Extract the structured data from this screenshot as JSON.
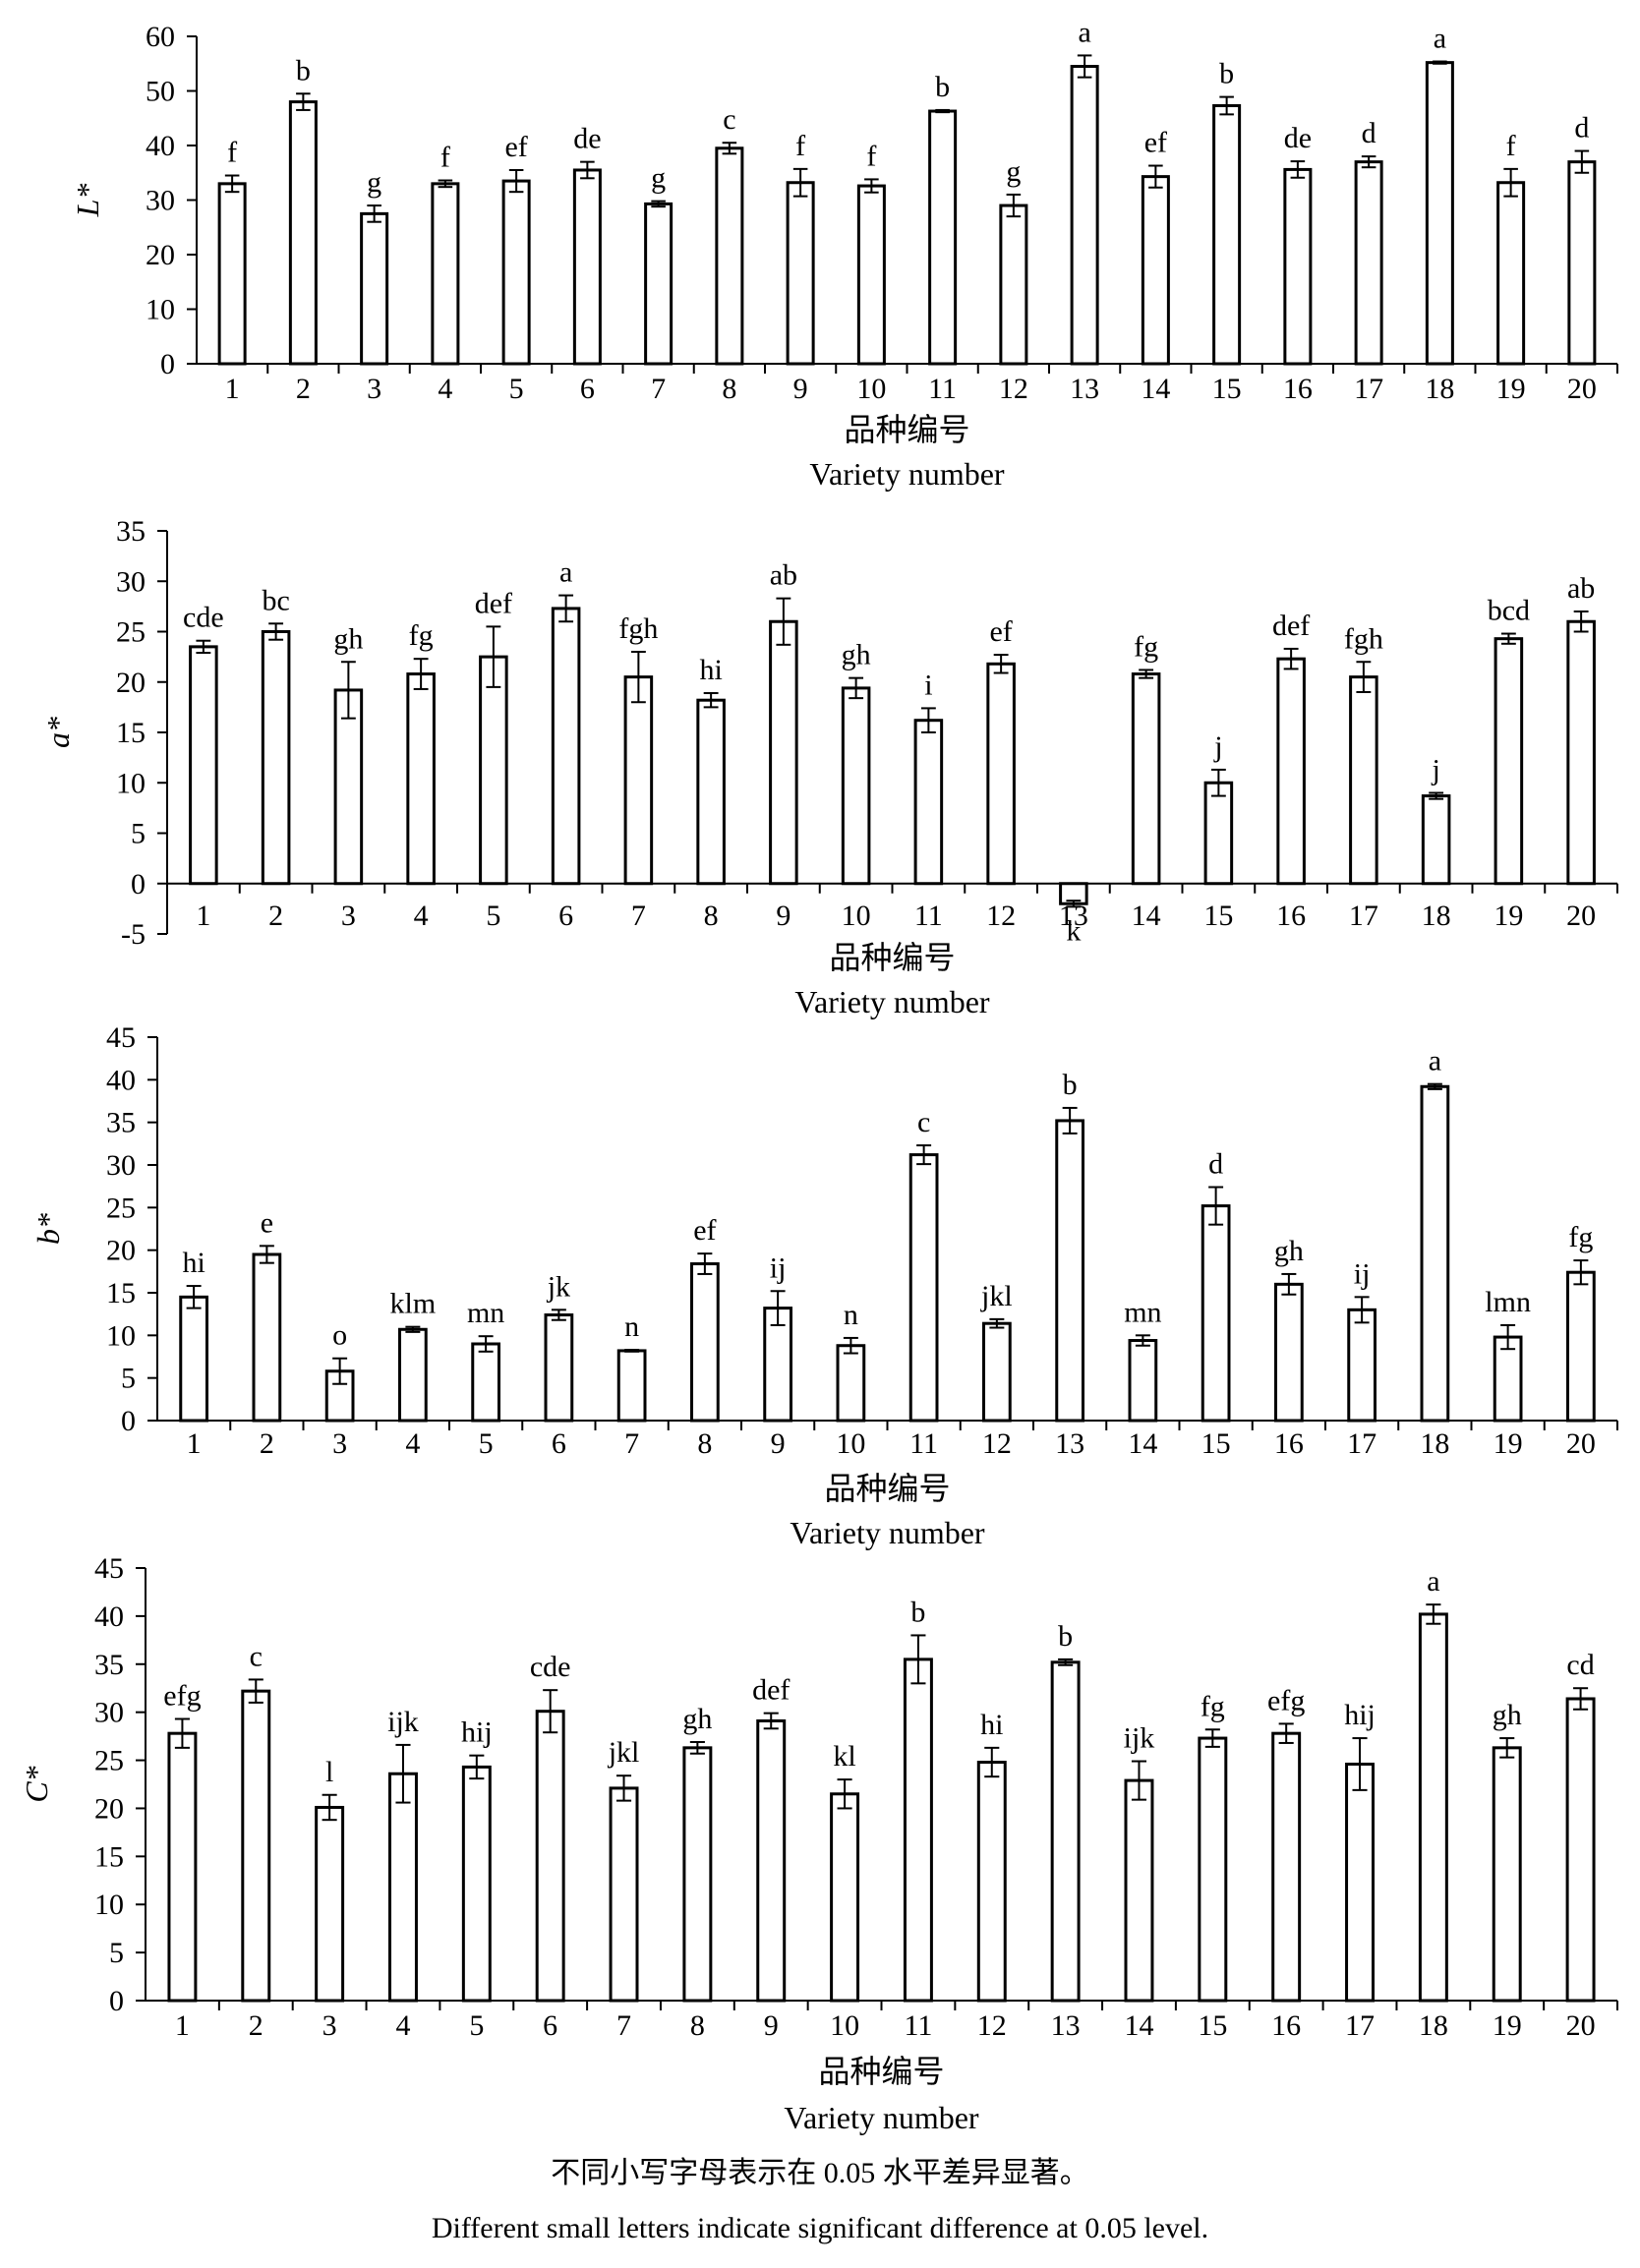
{
  "chart_data": [
    {
      "type": "bar",
      "ylabel": "L*",
      "xlabel_cn": "品种编号",
      "xlabel_en": "Variety number",
      "ylim": [
        0,
        60
      ],
      "yticks": [
        0,
        10,
        20,
        30,
        40,
        50,
        60
      ],
      "categories": [
        "1",
        "2",
        "3",
        "4",
        "5",
        "6",
        "7",
        "8",
        "9",
        "10",
        "11",
        "12",
        "13",
        "14",
        "15",
        "16",
        "17",
        "18",
        "19",
        "20"
      ],
      "values": [
        33.0,
        48.0,
        27.5,
        33.0,
        33.5,
        35.5,
        29.3,
        39.5,
        33.2,
        32.6,
        46.3,
        29.0,
        54.5,
        34.3,
        47.3,
        35.6,
        37.0,
        55.2,
        33.2,
        37.0
      ],
      "errors": [
        1.5,
        1.5,
        1.5,
        0.6,
        2.0,
        1.5,
        0.5,
        1.0,
        2.5,
        1.2,
        0.2,
        2.0,
        2.0,
        2.0,
        1.6,
        1.5,
        1.0,
        0.2,
        2.5,
        2.0
      ],
      "letters": [
        "f",
        "b",
        "g",
        "f",
        "ef",
        "de",
        "g",
        "c",
        "f",
        "f",
        "b",
        "g",
        "a",
        "ef",
        "b",
        "de",
        "d",
        "a",
        "f",
        "d"
      ]
    },
    {
      "type": "bar",
      "ylabel": "a*",
      "xlabel_cn": "品种编号",
      "xlabel_en": "Variety number",
      "ylim": [
        -5,
        35
      ],
      "yticks": [
        -5,
        0,
        5,
        10,
        15,
        20,
        25,
        30,
        35
      ],
      "categories": [
        "1",
        "2",
        "3",
        "4",
        "5",
        "6",
        "7",
        "8",
        "9",
        "10",
        "11",
        "12",
        "13",
        "14",
        "15",
        "16",
        "17",
        "18",
        "19",
        "20"
      ],
      "values": [
        23.5,
        25.0,
        19.2,
        20.8,
        22.5,
        27.3,
        20.5,
        18.2,
        26.0,
        19.4,
        16.2,
        21.8,
        -2.0,
        20.8,
        10.0,
        22.3,
        20.5,
        8.7,
        24.3,
        26.0
      ],
      "errors": [
        0.6,
        0.8,
        2.8,
        1.5,
        3.0,
        1.3,
        2.5,
        0.7,
        2.3,
        1.0,
        1.2,
        0.9,
        0.3,
        0.4,
        1.3,
        1.0,
        1.5,
        0.3,
        0.5,
        1.0
      ],
      "letters": [
        "cde",
        "bc",
        "gh",
        "fg",
        "def",
        "a",
        "fgh",
        "hi",
        "ab",
        "gh",
        "i",
        "ef",
        "k",
        "fg",
        "j",
        "def",
        "fgh",
        "j",
        "bcd",
        "ab"
      ]
    },
    {
      "type": "bar",
      "ylabel": "b*",
      "xlabel_cn": "品种编号",
      "xlabel_en": "Variety number",
      "ylim": [
        0,
        45
      ],
      "yticks": [
        0,
        5,
        10,
        15,
        20,
        25,
        30,
        35,
        40,
        45
      ],
      "categories": [
        "1",
        "2",
        "3",
        "4",
        "5",
        "6",
        "7",
        "8",
        "9",
        "10",
        "11",
        "12",
        "13",
        "14",
        "15",
        "16",
        "17",
        "18",
        "19",
        "20"
      ],
      "values": [
        14.5,
        19.5,
        5.8,
        10.7,
        9.0,
        12.4,
        8.2,
        18.4,
        13.2,
        8.8,
        31.2,
        11.4,
        35.2,
        9.4,
        25.2,
        16.0,
        13.0,
        39.2,
        9.8,
        17.4
      ],
      "errors": [
        1.3,
        1.0,
        1.5,
        0.3,
        0.9,
        0.6,
        0.1,
        1.2,
        2.0,
        0.9,
        1.1,
        0.5,
        1.5,
        0.6,
        2.2,
        1.2,
        1.5,
        0.3,
        1.4,
        1.4
      ],
      "letters": [
        "hi",
        "e",
        "o",
        "klm",
        "mn",
        "jk",
        "n",
        "ef",
        "ij",
        "n",
        "c",
        "jkl",
        "b",
        "mn",
        "d",
        "gh",
        "ij",
        "a",
        "lmn",
        "fg"
      ]
    },
    {
      "type": "bar",
      "ylabel": "C*",
      "xlabel_cn": "品种编号",
      "xlabel_en": "Variety number",
      "ylim": [
        0,
        45
      ],
      "yticks": [
        0,
        5,
        10,
        15,
        20,
        25,
        30,
        35,
        40,
        45
      ],
      "categories": [
        "1",
        "2",
        "3",
        "4",
        "5",
        "6",
        "7",
        "8",
        "9",
        "10",
        "11",
        "12",
        "13",
        "14",
        "15",
        "16",
        "17",
        "18",
        "19",
        "20"
      ],
      "values": [
        27.8,
        32.2,
        20.1,
        23.6,
        24.3,
        30.1,
        22.1,
        26.3,
        29.1,
        21.5,
        35.5,
        24.8,
        35.2,
        22.9,
        27.3,
        27.8,
        24.6,
        40.2,
        26.3,
        31.4
      ],
      "errors": [
        1.5,
        1.2,
        1.3,
        3.0,
        1.2,
        2.2,
        1.3,
        0.6,
        0.8,
        1.5,
        2.5,
        1.5,
        0.3,
        2.0,
        0.9,
        1.0,
        2.7,
        1.0,
        1.0,
        1.1
      ],
      "letters": [
        "efg",
        "c",
        "l",
        "ijk",
        "hij",
        "cde",
        "jkl",
        "gh",
        "def",
        "kl",
        "b",
        "hi",
        "b",
        "ijk",
        "fg",
        "efg",
        "hij",
        "a",
        "gh",
        "cd"
      ]
    }
  ],
  "footnote": {
    "cn": "不同小写字母表示在 0.05 水平差异显著。",
    "en": "Different small letters indicate significant difference at 0.05 level."
  }
}
